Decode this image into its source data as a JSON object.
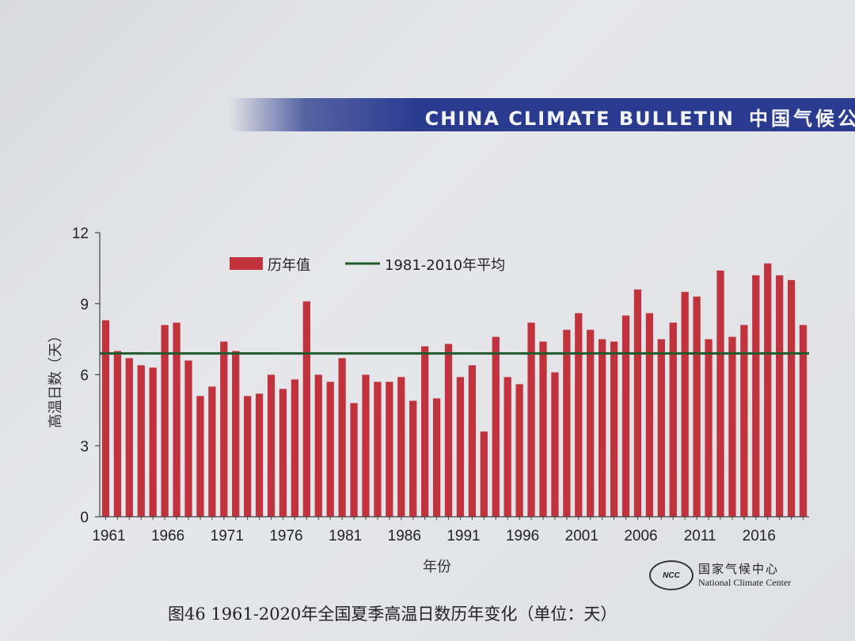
{
  "banner": {
    "title_en": "CHINA CLIMATE BULLETIN",
    "title_cn": "中国气候公"
  },
  "caption": "图46  1961-2020年全国夏季高温日数历年变化（单位：天）",
  "logo": {
    "mark": "NCC",
    "name_cn": "国家气候中心",
    "name_en": "National Climate Center"
  },
  "colors": {
    "bar": "#c0333d",
    "average_line": "#1f5a2a"
  },
  "chart_data": {
    "type": "bar",
    "x": [
      1961,
      1962,
      1963,
      1964,
      1965,
      1966,
      1967,
      1968,
      1969,
      1970,
      1971,
      1972,
      1973,
      1974,
      1975,
      1976,
      1977,
      1978,
      1979,
      1980,
      1981,
      1982,
      1983,
      1984,
      1985,
      1986,
      1987,
      1988,
      1989,
      1990,
      1991,
      1992,
      1993,
      1994,
      1995,
      1996,
      1997,
      1998,
      1999,
      2000,
      2001,
      2002,
      2003,
      2004,
      2005,
      2006,
      2007,
      2008,
      2009,
      2010,
      2011,
      2012,
      2013,
      2014,
      2015,
      2016,
      2017,
      2018,
      2019,
      2020
    ],
    "x_tick_labels": [
      "1961",
      "1966",
      "1971",
      "1976",
      "1981",
      "1986",
      "1991",
      "1996",
      "2001",
      "2006",
      "2011",
      "2016"
    ],
    "series": [
      {
        "name": "历年值",
        "values": [
          8.3,
          7.0,
          6.7,
          6.4,
          6.3,
          8.1,
          8.2,
          6.6,
          5.1,
          5.5,
          7.4,
          7.0,
          5.1,
          5.2,
          6.0,
          5.4,
          5.8,
          9.1,
          6.0,
          5.7,
          6.7,
          4.8,
          6.0,
          5.7,
          5.7,
          5.9,
          4.9,
          7.2,
          5.0,
          7.3,
          5.9,
          6.4,
          3.6,
          7.6,
          5.9,
          5.6,
          8.2,
          7.4,
          6.1,
          7.9,
          8.6,
          7.9,
          7.5,
          7.4,
          8.5,
          9.6,
          8.6,
          7.5,
          8.2,
          9.5,
          9.3,
          7.5,
          10.4,
          7.6,
          8.1,
          10.2,
          10.7,
          10.2,
          10.0,
          8.1
        ]
      }
    ],
    "reference_line": {
      "name": "1981-2010年平均",
      "value": 6.9
    },
    "xlabel": "年份",
    "ylabel": "高温日数（天）",
    "ylim": [
      0,
      12
    ],
    "y_ticks": [
      0,
      3,
      6,
      9,
      12
    ],
    "grid": false,
    "legend_position": "top-left"
  }
}
